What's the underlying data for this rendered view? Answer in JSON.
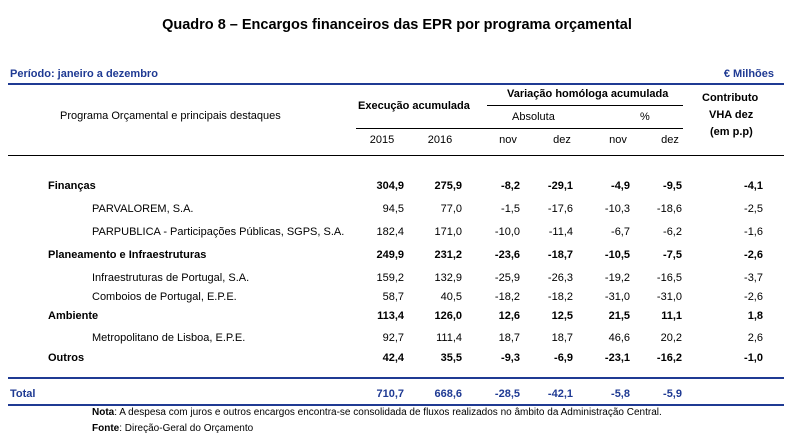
{
  "title": "Quadro 8 – Encargos financeiros das EPR por programa orçamental",
  "period": "Período: janeiro a dezembro",
  "unit": "€ Milhões",
  "headers": {
    "program": "Programa Orçamental e principais destaques",
    "execution": "Execução acumulada",
    "variation": "Variação homóloga acumulada",
    "absolute": "Absoluta",
    "percent": "%",
    "contrib1": "Contributo",
    "contrib2": "VHA dez",
    "contrib3": "(em p.p)",
    "y2015": "2015",
    "y2016": "2016",
    "nov1": "nov",
    "dez1": "dez",
    "nov2": "nov",
    "dez2": "dez"
  },
  "rows": [
    {
      "name": "Finanças",
      "v2015": "304,9",
      "v2016": "275,9",
      "abs_nov": "-8,2",
      "abs_dez": "-29,1",
      "pct_nov": "-4,9",
      "pct_dez": "-9,5",
      "contrib": "-4,1"
    },
    {
      "name": "PARVALOREM, S.A.",
      "v2015": "94,5",
      "v2016": "77,0",
      "abs_nov": "-1,5",
      "abs_dez": "-17,6",
      "pct_nov": "-10,3",
      "pct_dez": "-18,6",
      "contrib": "-2,5"
    },
    {
      "name": "PARPUBLICA - Participações Públicas, SGPS, S.A.",
      "v2015": "182,4",
      "v2016": "171,0",
      "abs_nov": "-10,0",
      "abs_dez": "-11,4",
      "pct_nov": "-6,7",
      "pct_dez": "-6,2",
      "contrib": "-1,6"
    },
    {
      "name": "Planeamento e Infraestruturas",
      "v2015": "249,9",
      "v2016": "231,2",
      "abs_nov": "-23,6",
      "abs_dez": "-18,7",
      "pct_nov": "-10,5",
      "pct_dez": "-7,5",
      "contrib": "-2,6"
    },
    {
      "name": "Infraestruturas de Portugal, S.A.",
      "v2015": "159,2",
      "v2016": "132,9",
      "abs_nov": "-25,9",
      "abs_dez": "-26,3",
      "pct_nov": "-19,2",
      "pct_dez": "-16,5",
      "contrib": "-3,7"
    },
    {
      "name": "Comboios de Portugal, E.P.E.",
      "v2015": "58,7",
      "v2016": "40,5",
      "abs_nov": "-18,2",
      "abs_dez": "-18,2",
      "pct_nov": "-31,0",
      "pct_dez": "-31,0",
      "contrib": "-2,6"
    },
    {
      "name": "Ambiente",
      "v2015": "113,4",
      "v2016": "126,0",
      "abs_nov": "12,6",
      "abs_dez": "12,5",
      "pct_nov": "21,5",
      "pct_dez": "11,1",
      "contrib": "1,8"
    },
    {
      "name": "Metropolitano de Lisboa, E.P.E.",
      "v2015": "92,7",
      "v2016": "111,4",
      "abs_nov": "18,7",
      "abs_dez": "18,7",
      "pct_nov": "46,6",
      "pct_dez": "20,2",
      "contrib": "2,6"
    },
    {
      "name": "Outros",
      "v2015": "42,4",
      "v2016": "35,5",
      "abs_nov": "-9,3",
      "abs_dez": "-6,9",
      "pct_nov": "-23,1",
      "pct_dez": "-16,2",
      "contrib": "-1,0"
    }
  ],
  "total": {
    "name": "Total",
    "v2015": "710,7",
    "v2016": "668,6",
    "abs_nov": "-28,5",
    "abs_dez": "-42,1",
    "pct_nov": "-5,8",
    "pct_dez": "-5,9",
    "contrib": ""
  },
  "notes": {
    "nota_label": "Nota",
    "nota_text": ": A despesa com juros e outros encargos encontra-se consolidada de fluxos realizados no âmbito da Administração Central.",
    "fonte_label": "Fonte",
    "fonte_text": ": Direção-Geral do Orçamento"
  }
}
